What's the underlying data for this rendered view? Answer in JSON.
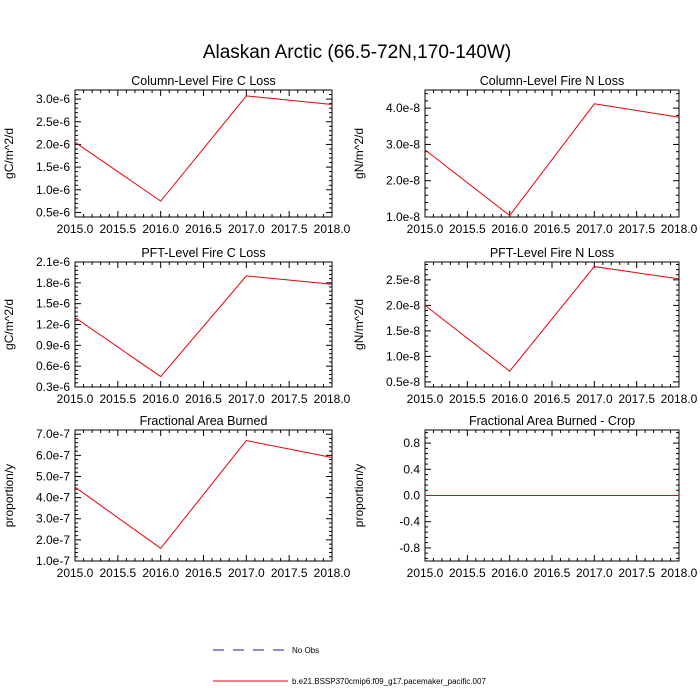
{
  "figure": {
    "title": "Alaskan Arctic (66.5-72N,170-140W)"
  },
  "legend": [
    {
      "label": "No Obs",
      "color": "#1f1f8f",
      "style": "dashed"
    },
    {
      "label": "b.e21.BSSP370cmip6.f09_g17.pacemaker_pacific.007",
      "color": "#e8000b",
      "style": "solid"
    }
  ],
  "chart_data": [
    {
      "type": "line",
      "title": "Column-Level Fire C Loss",
      "xlabel": "",
      "ylabel": "gC/m^2/d",
      "xlim": [
        2015.0,
        2018.0
      ],
      "ylim": [
        4e-07,
        3.2e-06
      ],
      "xticks": [
        "2015.0",
        "2015.5",
        "2016.0",
        "2016.5",
        "2017.0",
        "2017.5",
        "2018.0"
      ],
      "xtick_values": [
        2015.0,
        2015.5,
        2016.0,
        2016.5,
        2017.0,
        2017.5,
        2018.0
      ],
      "yticks": [
        "0.5e-6",
        "1.0e-6",
        "1.5e-6",
        "2.0e-6",
        "2.5e-6",
        "3.0e-6"
      ],
      "ytick_values": [
        5e-07,
        1e-06,
        1.5e-06,
        2e-06,
        2.5e-06,
        3e-06
      ],
      "series": [
        {
          "name": "b.e21.BSSP370cmip6.f09_g17.pacemaker_pacific.007",
          "color": "#e8000b",
          "x": [
            2015,
            2016,
            2017,
            2018
          ],
          "y": [
            2.05e-06,
            7.5e-07,
            3.07e-06,
            2.88e-06
          ]
        }
      ]
    },
    {
      "type": "line",
      "title": "Column-Level Fire N Loss",
      "xlabel": "",
      "ylabel": "gN/m^2/d",
      "xlim": [
        2015.0,
        2018.0
      ],
      "ylim": [
        1e-08,
        4.5e-08
      ],
      "xticks": [
        "2015.0",
        "2015.5",
        "2016.0",
        "2016.5",
        "2017.0",
        "2017.5",
        "2018.0"
      ],
      "xtick_values": [
        2015.0,
        2015.5,
        2016.0,
        2016.5,
        2017.0,
        2017.5,
        2018.0
      ],
      "yticks": [
        "1.0e-8",
        "2.0e-8",
        "3.0e-8",
        "4.0e-8"
      ],
      "ytick_values": [
        1e-08,
        2e-08,
        3e-08,
        4e-08
      ],
      "series": [
        {
          "name": "b.e21.BSSP370cmip6.f09_g17.pacemaker_pacific.007",
          "color": "#e8000b",
          "x": [
            2015,
            2016,
            2017,
            2018
          ],
          "y": [
            2.85e-08,
            1.04e-08,
            4.12e-08,
            3.75e-08
          ]
        }
      ]
    },
    {
      "type": "line",
      "title": "PFT-Level Fire C Loss",
      "xlabel": "",
      "ylabel": "gC/m^2/d",
      "xlim": [
        2015.0,
        2018.0
      ],
      "ylim": [
        3e-07,
        2.1e-06
      ],
      "xticks": [
        "2015.0",
        "2015.5",
        "2016.0",
        "2016.5",
        "2017.0",
        "2017.5",
        "2018.0"
      ],
      "xtick_values": [
        2015.0,
        2015.5,
        2016.0,
        2016.5,
        2017.0,
        2017.5,
        2018.0
      ],
      "yticks": [
        "0.3e-6",
        "0.6e-6",
        "0.9e-6",
        "1.2e-6",
        "1.5e-6",
        "1.8e-6",
        "2.1e-6"
      ],
      "ytick_values": [
        3e-07,
        6e-07,
        9e-07,
        1.2e-06,
        1.5e-06,
        1.8e-06,
        2.1e-06
      ],
      "series": [
        {
          "name": "b.e21.BSSP370cmip6.f09_g17.pacemaker_pacific.007",
          "color": "#e8000b",
          "x": [
            2015,
            2016,
            2017,
            2018
          ],
          "y": [
            1.3e-06,
            4.5e-07,
            1.9e-06,
            1.78e-06
          ]
        }
      ]
    },
    {
      "type": "line",
      "title": "PFT-Level Fire N Loss",
      "xlabel": "",
      "ylabel": "gN/m^2/d",
      "xlim": [
        2015.0,
        2018.0
      ],
      "ylim": [
        4e-09,
        2.85e-08
      ],
      "xticks": [
        "2015.0",
        "2015.5",
        "2016.0",
        "2016.5",
        "2017.0",
        "2017.5",
        "2018.0"
      ],
      "xtick_values": [
        2015.0,
        2015.5,
        2016.0,
        2016.5,
        2017.0,
        2017.5,
        2018.0
      ],
      "yticks": [
        "0.5e-8",
        "1.0e-8",
        "1.5e-8",
        "2.0e-8",
        "2.5e-8"
      ],
      "ytick_values": [
        5e-09,
        1e-08,
        1.5e-08,
        2e-08,
        2.5e-08
      ],
      "series": [
        {
          "name": "b.e21.BSSP370cmip6.f09_g17.pacemaker_pacific.007",
          "color": "#e8000b",
          "x": [
            2015,
            2016,
            2017,
            2018
          ],
          "y": [
            2e-08,
            7.1e-09,
            2.76e-08,
            2.52e-08
          ]
        }
      ]
    },
    {
      "type": "line",
      "title": "Fractional Area Burned",
      "xlabel": "",
      "ylabel": "proportion/y",
      "xlim": [
        2015.0,
        2018.0
      ],
      "ylim": [
        1e-07,
        7.2e-07
      ],
      "xticks": [
        "2015.0",
        "2015.5",
        "2016.0",
        "2016.5",
        "2017.0",
        "2017.5",
        "2018.0"
      ],
      "xtick_values": [
        2015.0,
        2015.5,
        2016.0,
        2016.5,
        2017.0,
        2017.5,
        2018.0
      ],
      "yticks": [
        "1.0e-7",
        "2.0e-7",
        "3.0e-7",
        "4.0e-7",
        "5.0e-7",
        "6.0e-7",
        "7.0e-7"
      ],
      "ytick_values": [
        1e-07,
        2e-07,
        3e-07,
        4e-07,
        5e-07,
        6e-07,
        7e-07
      ],
      "series": [
        {
          "name": "b.e21.BSSP370cmip6.f09_g17.pacemaker_pacific.007",
          "color": "#e8000b",
          "x": [
            2015,
            2016,
            2017,
            2018
          ],
          "y": [
            4.5e-07,
            1.6e-07,
            6.7e-07,
            5.9e-07
          ]
        }
      ]
    },
    {
      "type": "line",
      "title": "Fractional Area Burned - Crop",
      "xlabel": "",
      "ylabel": "proportion/y",
      "xlim": [
        2015.0,
        2018.0
      ],
      "ylim": [
        -1.0,
        1.0
      ],
      "xticks": [
        "2015.0",
        "2015.5",
        "2016.0",
        "2016.5",
        "2017.0",
        "2017.5",
        "2018.0"
      ],
      "xtick_values": [
        2015.0,
        2015.5,
        2016.0,
        2016.5,
        2017.0,
        2017.5,
        2018.0
      ],
      "yticks": [
        "-0.8",
        "-0.4",
        "0.0",
        "0.4",
        "0.8"
      ],
      "ytick_values": [
        -0.8,
        -0.4,
        0.0,
        0.4,
        0.8
      ],
      "series": [
        {
          "name": "b.e21.BSSP370cmip6.f09_g17.pacemaker_pacific.007",
          "color": "#e8000b",
          "x": [
            2015,
            2016,
            2017,
            2018
          ],
          "y": [
            0.0,
            0.0,
            0.0,
            0.0
          ]
        }
      ]
    }
  ]
}
